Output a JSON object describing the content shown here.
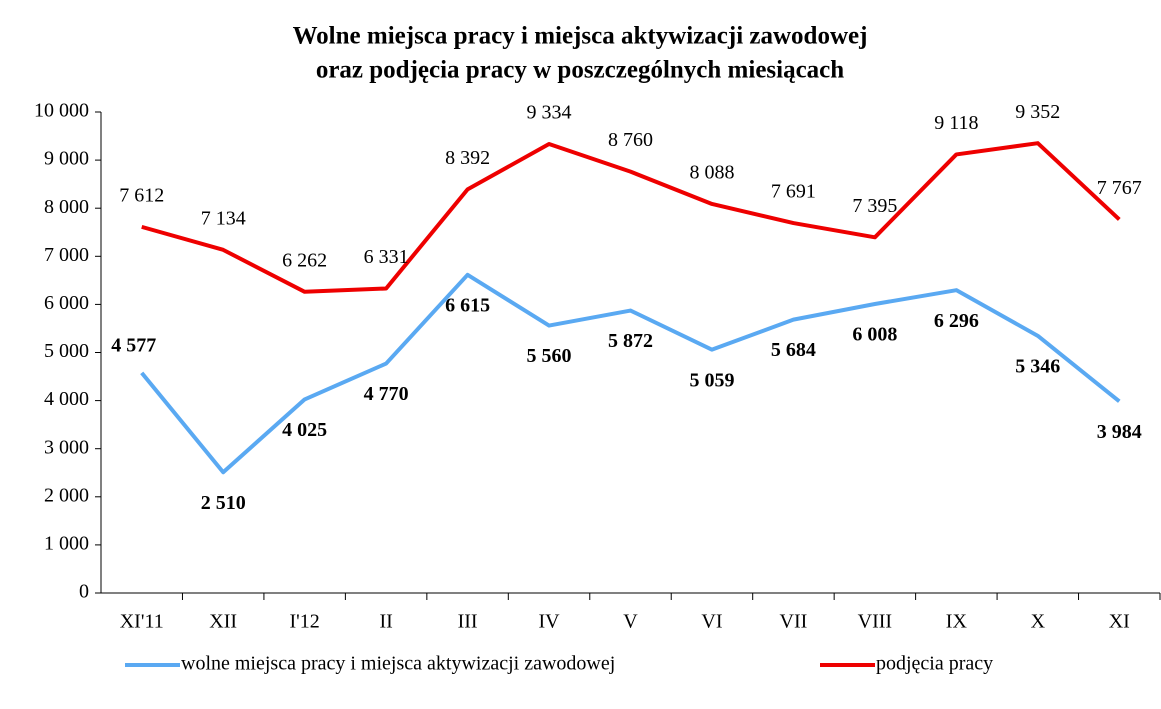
{
  "chart_data": {
    "type": "line",
    "title": "Wolne miejsca pracy i miejsca aktywizacji zawodowej",
    "subtitle": "oraz podjęcia pracy w poszczególnych miesiącach",
    "categories": [
      "XI'11",
      "XII",
      "I'12",
      "II",
      "III",
      "IV",
      "V",
      "VI",
      "VII",
      "VIII",
      "IX",
      "X",
      "XI"
    ],
    "series": [
      {
        "name": "wolne miejsca pracy i miejsca aktywizacji zawodowej",
        "color": "#5aa9f2",
        "values": [
          4577,
          2510,
          4025,
          4770,
          6615,
          5560,
          5872,
          5059,
          5684,
          6008,
          6296,
          5346,
          3984
        ],
        "value_labels": [
          "4 577",
          "2 510",
          "4 025",
          "4 770",
          "6 615",
          "5 560",
          "5 872",
          "5 059",
          "5 684",
          "6 008",
          "6 296",
          "5 346",
          "3 984"
        ]
      },
      {
        "name": "podjęcia pracy",
        "color": "#ee0000",
        "values": [
          7612,
          7134,
          6262,
          6331,
          8392,
          9334,
          8760,
          8088,
          7691,
          7395,
          9118,
          9352,
          7767
        ],
        "value_labels": [
          "7 612",
          "7 134",
          "6 262",
          "6 331",
          "8 392",
          "9 334",
          "8 760",
          "8 088",
          "7 691",
          "7 395",
          "9 118",
          "9 352",
          "7 767"
        ]
      }
    ],
    "ylim": [
      0,
      10000
    ],
    "yticks": [
      0,
      {
        "value": 1000,
        "label": "1 000"
      },
      {
        "value": 2000,
        "label": "2 000"
      },
      {
        "value": 3000,
        "label": "3 000"
      },
      {
        "value": 4000,
        "label": "4 000"
      },
      {
        "value": 5000,
        "label": "5 000"
      },
      {
        "value": 6000,
        "label": "6 000"
      },
      {
        "value": 7000,
        "label": "7 000"
      },
      {
        "value": 8000,
        "label": "8 000"
      },
      {
        "value": 9000,
        "label": "9 000"
      },
      {
        "value": 10000,
        "label": "10 000"
      }
    ],
    "grid": false,
    "legend": "bottom"
  }
}
